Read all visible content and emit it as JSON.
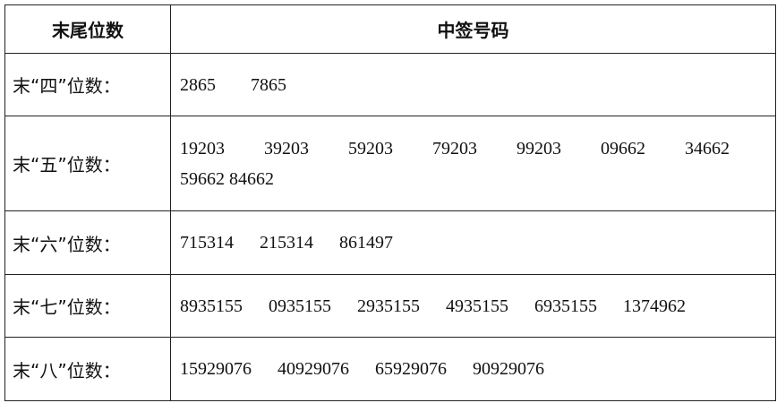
{
  "headers": [
    "末尾位数",
    "中签号码"
  ],
  "rows": [
    {
      "label": "末“四”位数：",
      "numbers": [
        "2865",
        "7865"
      ]
    },
    {
      "label": "末“五”位数：",
      "numbers": [
        "19203",
        "39203",
        "59203",
        "79203",
        "99203",
        "09662",
        "34662",
        "59662",
        "84662"
      ]
    },
    {
      "label": "末“六”位数：",
      "numbers": [
        "715314",
        "215314",
        "861497"
      ]
    },
    {
      "label": "末“七”位数：",
      "numbers": [
        "8935155",
        "0935155",
        "2935155",
        "4935155",
        "6935155",
        "1374962"
      ]
    },
    {
      "label": "末“八”位数：",
      "numbers": [
        "15929076",
        "40929076",
        "65929076",
        "90929076"
      ]
    }
  ]
}
